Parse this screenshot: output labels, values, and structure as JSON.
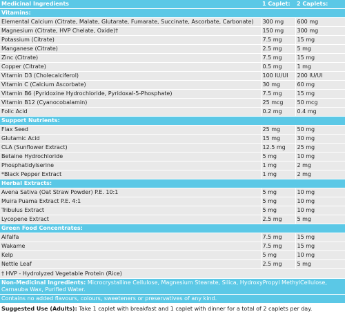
{
  "header": {
    "col1": "Medicinal Ingredients",
    "col2": "1 Caplet:",
    "col3": "2 Caplets:"
  },
  "sections": [
    {
      "title": "Vitamins:",
      "rows": [
        {
          "name": "Elemental Calcium (Citrate, Malate, Glutarate, Fumarate, Succinate, Ascorbate, Carbonate)",
          "one": "300 mg",
          "two": "600 mg"
        },
        {
          "name": "Magnesium (Citrate, HVP Chelate, Oxide)†",
          "one": "150 mg",
          "two": "300 mg"
        },
        {
          "name": "Potassium (Citrate)",
          "one": "7.5 mg",
          "two": "15 mg"
        },
        {
          "name": "Manganese (Citrate)",
          "one": "2.5 mg",
          "two": "5 mg"
        },
        {
          "name": "Zinc (Citrate)",
          "one": "7.5 mg",
          "two": "15 mg"
        },
        {
          "name": "Copper (Citrate)",
          "one": "0.5 mg",
          "two": "1 mg"
        },
        {
          "name": "Vitamin D3 (Cholecalciferol)",
          "one": "100 IU/UI",
          "two": "200 IU/UI"
        },
        {
          "name": "Vitamin C (Calcium Ascorbate)",
          "one": "30 mg",
          "two": "60 mg"
        },
        {
          "name": "Vitamin B6 (Pyridoxine Hydrochloride, Pyridoxal-5-Phosphate)",
          "one": "7.5 mg",
          "two": "15 mg"
        },
        {
          "name": "Vitamin B12 (Cyanocobalamin)",
          "one": "25 mcg",
          "two": "50 mcg"
        },
        {
          "name": "Folic Acid",
          "one": "0.2 mg",
          "two": "0.4 mg"
        }
      ]
    },
    {
      "title": "Support Nutrients:",
      "rows": [
        {
          "name": "Flax Seed",
          "one": "25 mg",
          "two": "50 mg"
        },
        {
          "name": "Glutamic Acid",
          "one": "15 mg",
          "two": "30 mg"
        },
        {
          "name": "CLA (Sunflower Extract)",
          "one": "12.5 mg",
          "two": "25 mg"
        },
        {
          "name": "Betaine Hydrochloride",
          "one": "5 mg",
          "two": "10 mg"
        },
        {
          "name": "Phosphatidylserine",
          "one": "1 mg",
          "two": "2 mg"
        },
        {
          "name": "*Black Pepper Extract",
          "one": "1 mg",
          "two": "2 mg"
        }
      ]
    },
    {
      "title": "Herbal Extracts:",
      "rows": [
        {
          "name": "Avena Sativa (Oat Straw Powder) P.E. 10:1",
          "one": "5 mg",
          "two": "10 mg"
        },
        {
          "name": "Muira Puama Extract P.E. 4:1",
          "one": "5 mg",
          "two": "10 mg"
        },
        {
          "name": "Tribulus Extract",
          "one": "5 mg",
          "two": "10 mg"
        },
        {
          "name": "Lycopene Extract",
          "one": "2.5 mg",
          "two": "5 mg"
        }
      ]
    },
    {
      "title": "Green Food Concentrates:",
      "rows": [
        {
          "name": "Alfalfa",
          "one": "7.5 mg",
          "two": "15 mg"
        },
        {
          "name": "Wakame",
          "one": "7.5 mg",
          "two": "15 mg"
        },
        {
          "name": "Kelp",
          "one": "5 mg",
          "two": "10 mg"
        },
        {
          "name": "Nettle Leaf",
          "one": "2.5 mg",
          "two": "5 mg"
        }
      ]
    }
  ],
  "hvp_note": "† HVP - Hydrolyzed Vegetable Protein (Rice)",
  "non_medicinal": {
    "label": "Non-Medicinal Ingredients:",
    "text": " Microcrystalline Cellulose, Magnesium Stearate, Silica, HydroxyPropyl MethylCellulose, Carnauba Wax, Purified Water."
  },
  "no_additives": "Contains no added flavours, colours, sweeteners or preservatives of any kind.",
  "suggested_use": {
    "label": "Suggested Use (Adults):",
    "text": " Take 1 caplet with breakfast and 1 caplet with dinner for a total of 2 caplets per day."
  },
  "colors": {
    "header_bg": "#5bc8e6",
    "row_bg": "#e9e9e9"
  }
}
